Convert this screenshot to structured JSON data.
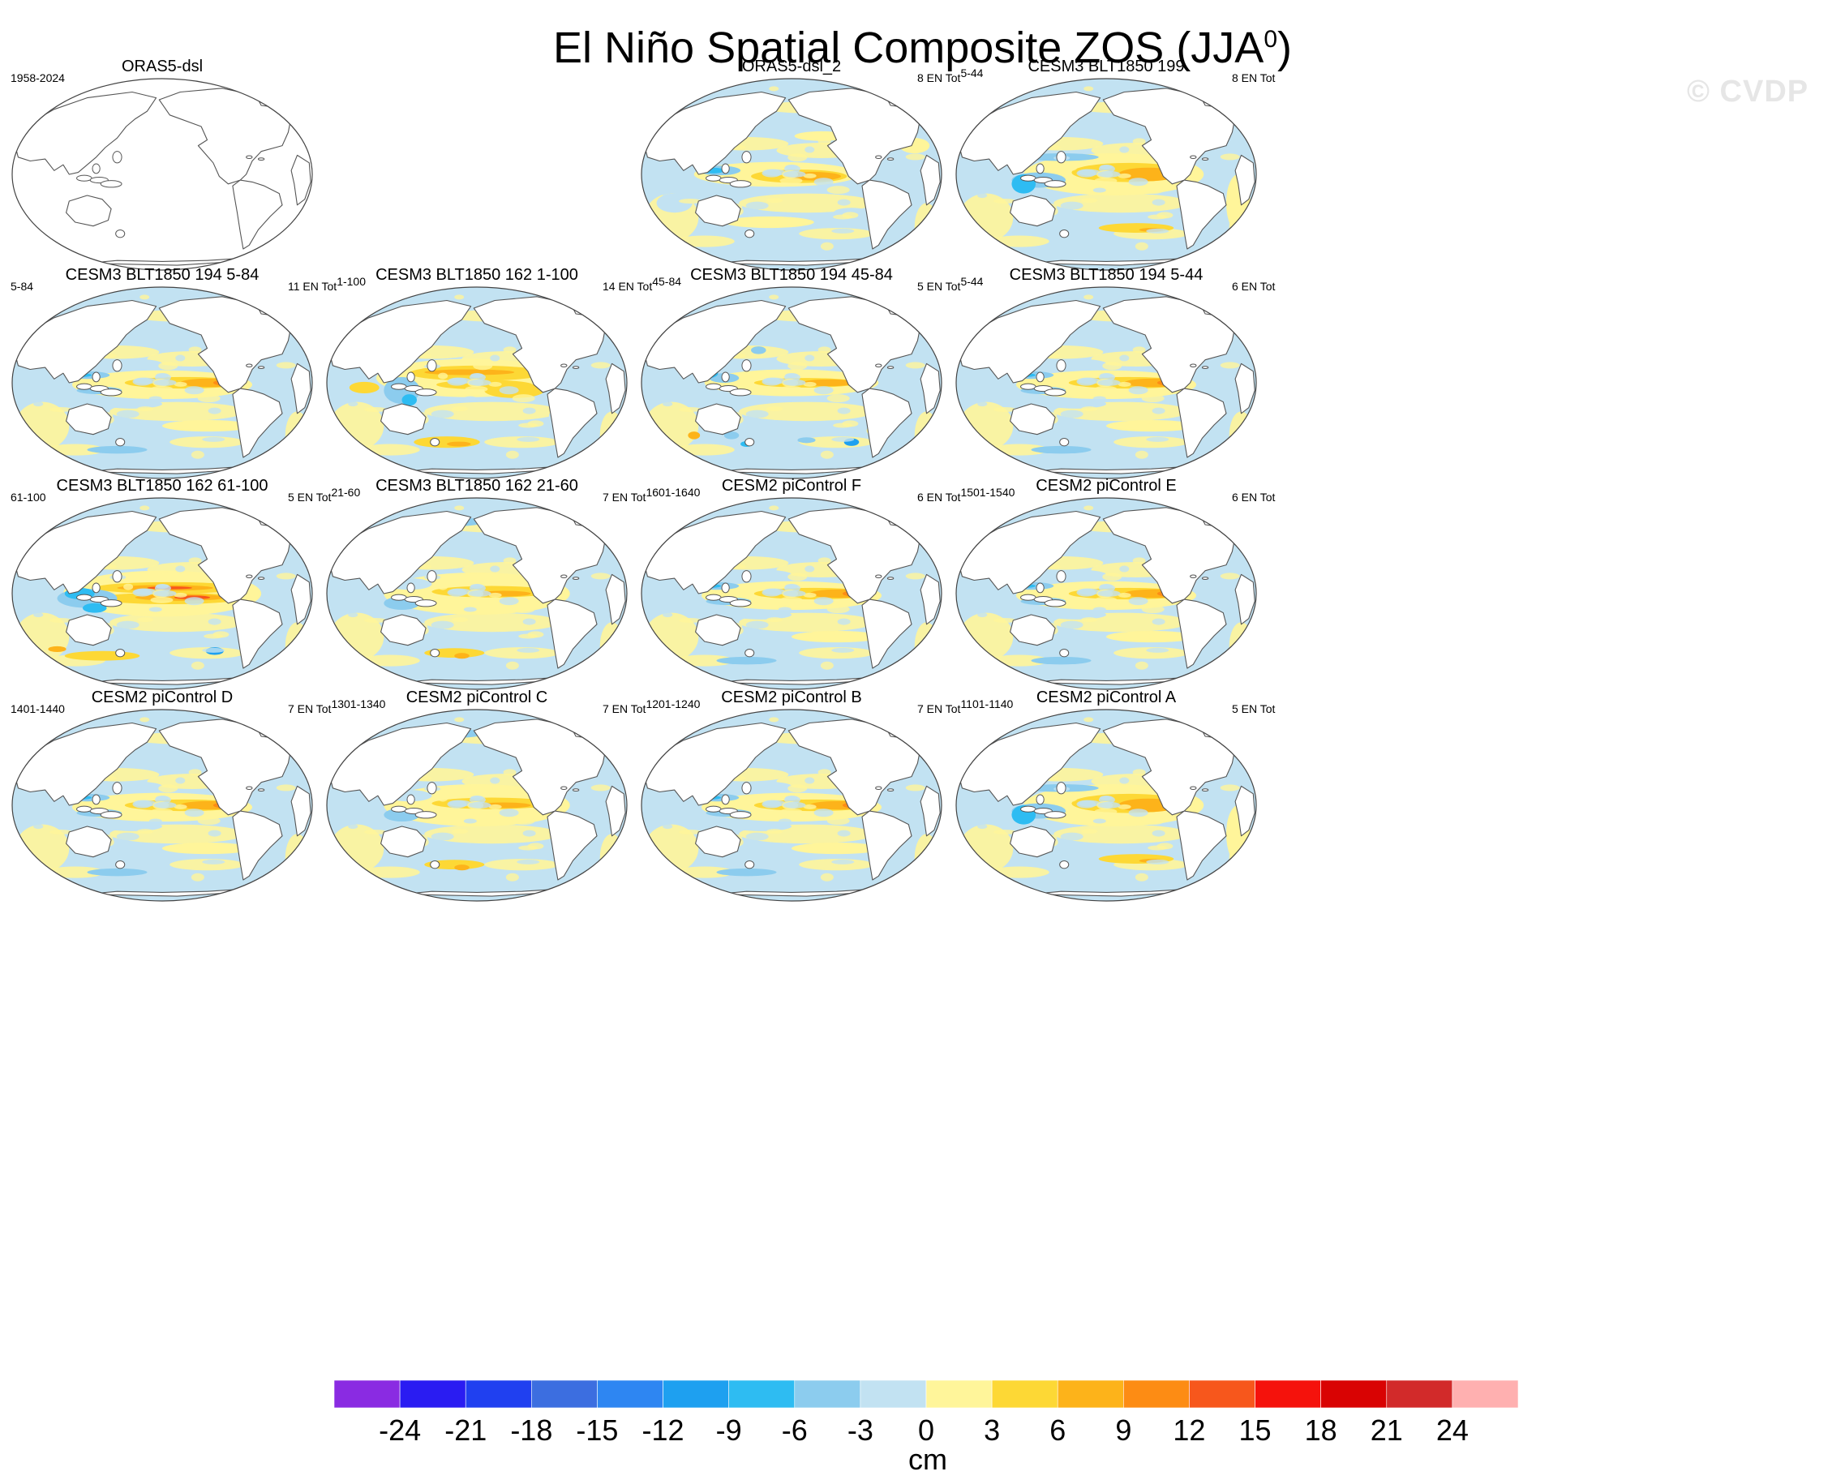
{
  "title": {
    "main": "El Niño Spatial Composite ZOS (JJA",
    "superscript": "0",
    "close": ")"
  },
  "watermark": "© CVDP",
  "colorbar": {
    "unit": "cm",
    "levels": [
      -24,
      -21,
      -18,
      -15,
      -12,
      -9,
      -6,
      -3,
      0,
      3,
      6,
      9,
      12,
      15,
      18,
      21,
      24
    ],
    "colors": [
      "#8a2be2",
      "#2a1cf2",
      "#2040f0",
      "#3c6ee0",
      "#2e86f2",
      "#1ea0f0",
      "#2ebcf2",
      "#8cccee",
      "#c2e2f2",
      "#fff59a",
      "#fdd835",
      "#fdb31a",
      "#fd8c14",
      "#f7571c",
      "#f5120c",
      "#d90303",
      "#d22a2a",
      "#ffb0b0"
    ]
  },
  "panels": [
    {
      "title": "ORAS5-dsl",
      "left": "1958-2024",
      "right": "",
      "empty": true,
      "pattern": "none"
    },
    {
      "title": "ORAS5-dsl_2",
      "left": "",
      "right": "8 EN Tot",
      "right_sup": "5-44",
      "empty": false,
      "pattern": "obs"
    },
    {
      "title": "CESM3 BLT1850 199",
      "left": "",
      "right": "8 EN Tot",
      "right_sup": "",
      "empty": false,
      "pattern": "broad"
    },
    {
      "title": "CESM3 BLT1850 194 5-84",
      "left": "5-84",
      "right": "11 EN Tot",
      "right_sup": "1-100",
      "empty": false,
      "pattern": "tongue"
    },
    {
      "title": "CESM3 BLT1850 162 1-100",
      "left": "",
      "right": "14 EN Tot",
      "right_sup": "45-84",
      "empty": false,
      "pattern": "strong"
    },
    {
      "title": "CESM3 BLT1850 194 45-84",
      "left": "",
      "right": "5 EN Tot",
      "right_sup": "5-44",
      "empty": false,
      "pattern": "noisy"
    },
    {
      "title": "CESM3 BLT1850 194 5-44",
      "left": "",
      "right": "6 EN Tot",
      "right_sup": "",
      "empty": false,
      "pattern": "tongue"
    },
    {
      "title": "CESM3 BLT1850 162 61-100",
      "left": "61-100",
      "right": "5 EN Tot",
      "right_sup": "21-60",
      "empty": false,
      "pattern": "strongest"
    },
    {
      "title": "CESM3 BLT1850 162 21-60",
      "left": "",
      "right": "7 EN Tot",
      "right_sup": "1601-1640",
      "empty": false,
      "pattern": "weak"
    },
    {
      "title": "CESM2 piControl F",
      "left": "",
      "right": "6 EN Tot",
      "right_sup": "1501-1540",
      "empty": false,
      "pattern": "tongue"
    },
    {
      "title": "CESM2 piControl E",
      "left": "",
      "right": "6 EN Tot",
      "right_sup": "",
      "empty": false,
      "pattern": "tongue"
    },
    {
      "title": "CESM2 piControl D",
      "left": "1401-1440",
      "right": "7 EN Tot",
      "right_sup": "1301-1340",
      "empty": false,
      "pattern": "tongue"
    },
    {
      "title": "CESM2 piControl C",
      "left": "",
      "right": "7 EN Tot",
      "right_sup": "1201-1240",
      "empty": false,
      "pattern": "weak"
    },
    {
      "title": "CESM2 piControl B",
      "left": "",
      "right": "7 EN Tot",
      "right_sup": "1101-1140",
      "empty": false,
      "pattern": "tongue"
    },
    {
      "title": "CESM2 piControl A",
      "left": "",
      "right": "5 EN Tot",
      "right_sup": "",
      "empty": false,
      "pattern": "broad"
    }
  ],
  "chart_data": {
    "type": "heatmap",
    "title": "El Niño Spatial Composite ZOS (JJA0)",
    "variable": "ZOS",
    "season": "JJA",
    "unit": "cm",
    "color_levels": [
      -24,
      -21,
      -18,
      -15,
      -12,
      -9,
      -6,
      -3,
      0,
      3,
      6,
      9,
      12,
      15,
      18,
      21,
      24
    ],
    "panels": [
      "ORAS5-dsl",
      "ORAS5-dsl_2",
      "CESM3 BLT1850 199",
      "CESM3 BLT1850 194 5-84",
      "CESM3 BLT1850 162 1-100",
      "CESM3 BLT1850 194 45-84",
      "CESM3 BLT1850 194 5-44",
      "CESM3 BLT1850 162 61-100",
      "CESM3 BLT1850 162 21-60",
      "CESM2 piControl F",
      "CESM2 piControl E",
      "CESM2 piControl D",
      "CESM2 piControl C",
      "CESM2 piControl B",
      "CESM2 piControl A"
    ]
  }
}
